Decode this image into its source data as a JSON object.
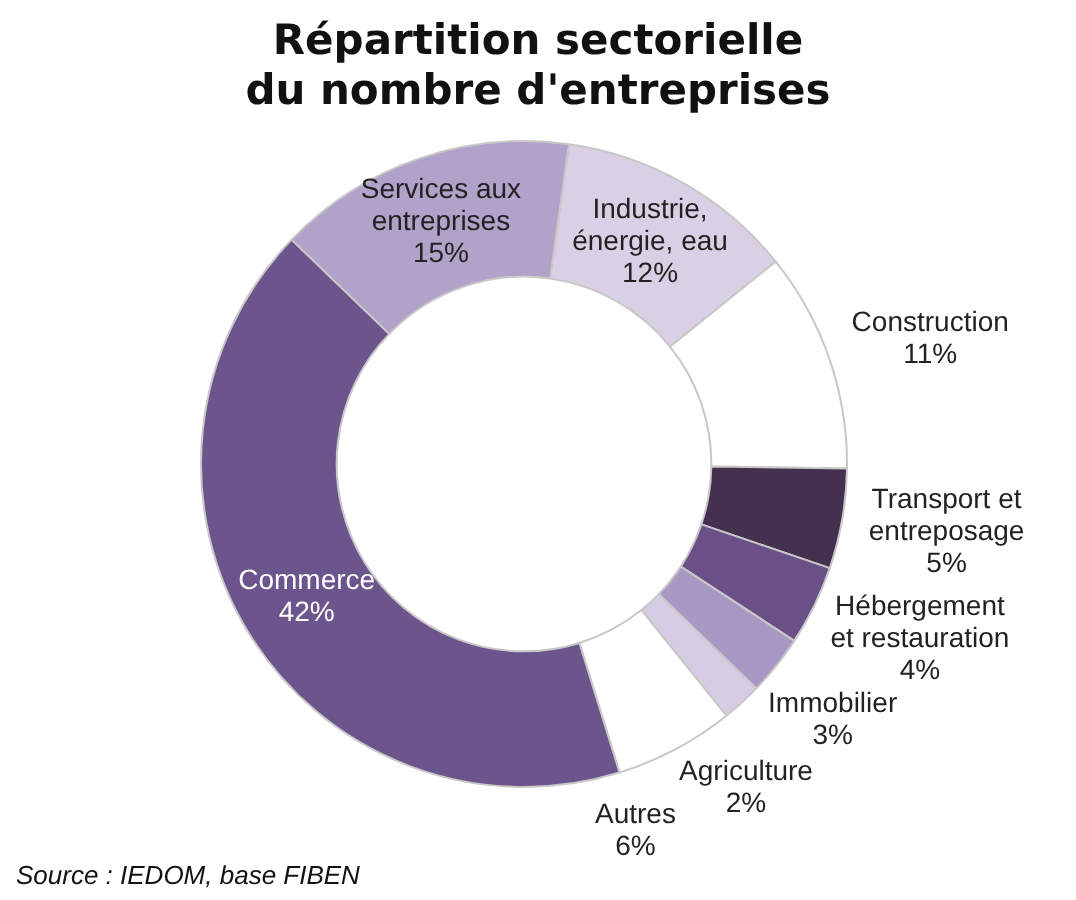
{
  "chart_data": {
    "type": "donut",
    "title": "Répartition sectorielle du nombre d'entreprises",
    "categories": [
      "Industrie, énergie, eau",
      "Construction",
      "Transport et entreposage",
      "Hébergement et restauration",
      "Immobilier",
      "Agriculture",
      "Autres",
      "Commerce",
      "Services aux entreprises"
    ],
    "values": [
      12,
      11,
      5,
      4,
      3,
      2,
      6,
      42,
      15
    ],
    "value_labels": [
      "12%",
      "11%",
      "5%",
      "4%",
      "3%",
      "2%",
      "6%",
      "42%",
      "15%"
    ],
    "colors": [
      "#d9d0e6",
      "#ffffff",
      "#45304f",
      "#6b5088",
      "#a898c4",
      "#d6cde4",
      "#ffffff",
      "#6c548c",
      "#b1a2ca"
    ],
    "legend": false,
    "annotations": [
      "Source : IEDOM, base FIBEN"
    ]
  }
}
